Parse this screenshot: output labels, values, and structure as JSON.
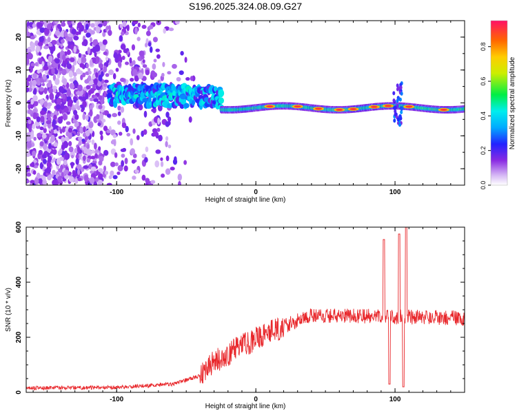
{
  "title": "S196.2025.324.08.09.G27",
  "chart_data": [
    {
      "type": "heatmap",
      "name": "spectrogram",
      "xlabel": "Height of straight line (km)",
      "ylabel": "Frequency (Hz)",
      "xlim": [
        -165,
        150
      ],
      "ylim": [
        -25,
        25
      ],
      "xticks": [
        "-100",
        "0",
        "100"
      ],
      "xtick_values": [
        -100,
        0,
        100
      ],
      "yticks": [
        "-20",
        "-10",
        "0",
        "10",
        "20"
      ],
      "ytick_values": [
        -20,
        -10,
        0,
        10,
        20
      ],
      "colorbar": {
        "label": "Normalized spectral amplitude",
        "range": [
          0.0,
          0.95
        ],
        "ticks": [
          "0.0",
          "0.2",
          "0.4",
          "0.6",
          "0.8"
        ],
        "tick_values": [
          0.0,
          0.2,
          0.4,
          0.6,
          0.8
        ]
      },
      "features": {
        "noise_region_x": [
          -165,
          -40
        ],
        "band_start_x": -105,
        "band_center_hz_left": 2.5,
        "band_center_hz_right": -1.5,
        "strong_band_x": [
          -25,
          150
        ],
        "hot_spots_x": [
          10,
          30,
          45,
          60,
          70,
          85,
          95,
          110,
          135
        ]
      }
    },
    {
      "type": "line",
      "name": "snr",
      "xlabel": "Height of straight line (km)",
      "ylabel": "SNR (10 * v/v)",
      "xlim": [
        -165,
        150
      ],
      "ylim": [
        0,
        600
      ],
      "xticks": [
        "-100",
        "0",
        "100"
      ],
      "xtick_values": [
        -100,
        0,
        100
      ],
      "yticks": [
        "0",
        "200",
        "400",
        "600"
      ],
      "ytick_values": [
        0,
        200,
        400,
        600
      ],
      "color": "#e8262a",
      "series_summary": {
        "level_x": [
          -165,
          -100,
          -60,
          -40,
          -30,
          -10,
          20,
          40,
          90,
          150
        ],
        "level_y": [
          15,
          18,
          30,
          60,
          110,
          170,
          240,
          280,
          275,
          270
        ],
        "spikes": [
          {
            "x": 92,
            "y": 555
          },
          {
            "x": 96,
            "y": 30
          },
          {
            "x": 103,
            "y": 575
          },
          {
            "x": 106,
            "y": 20
          },
          {
            "x": 108,
            "y": 600
          }
        ]
      }
    }
  ]
}
